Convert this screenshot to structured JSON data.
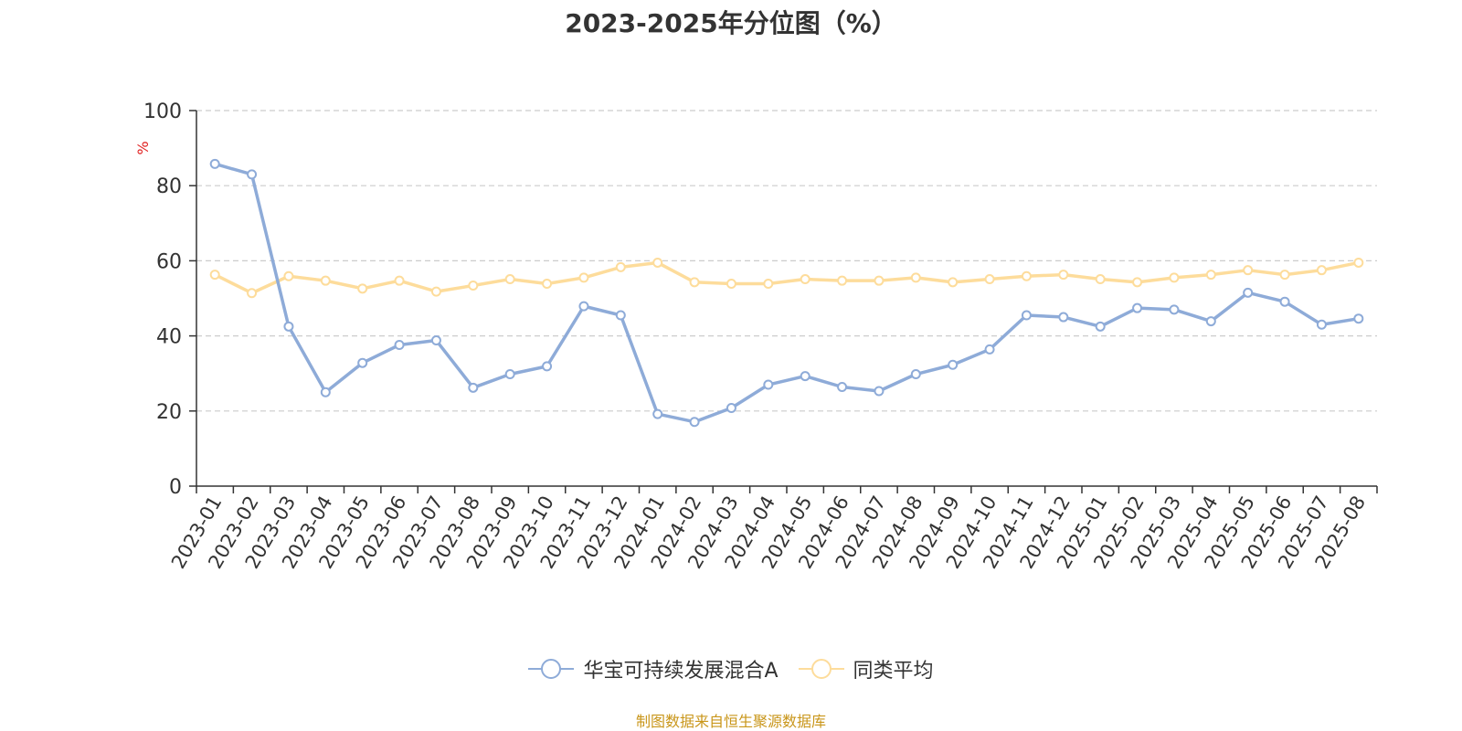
{
  "chart_data": {
    "type": "line",
    "title": "2023-2025年分位图（%）",
    "ylabel": "%",
    "ylim": [
      0,
      100
    ],
    "yticks": [
      "0",
      "20",
      "40",
      "60",
      "80",
      "100"
    ],
    "grid": true,
    "legend_position": "bottom",
    "categories": [
      "2023-01",
      "2023-02",
      "2023-03",
      "2023-04",
      "2023-05",
      "2023-06",
      "2023-07",
      "2023-08",
      "2023-09",
      "2023-10",
      "2023-11",
      "2023-12",
      "2024-01",
      "2024-02",
      "2024-03",
      "2024-04",
      "2024-05",
      "2024-06",
      "2024-07",
      "2024-08",
      "2024-09",
      "2024-10",
      "2024-11",
      "2024-12",
      "2025-01",
      "2025-02",
      "2025-03",
      "2025-04",
      "2025-05",
      "2025-06",
      "2025-07",
      "2025-08"
    ],
    "series": [
      {
        "name": "华宝可持续发展混合A",
        "color": "#8eabd8",
        "values": [
          85.8,
          83.0,
          42.5,
          25.0,
          32.8,
          37.6,
          38.8,
          26.2,
          29.8,
          31.9,
          47.9,
          45.5,
          19.2,
          17.1,
          20.8,
          27.0,
          29.3,
          26.4,
          25.3,
          29.8,
          32.3,
          36.4,
          45.5,
          45.0,
          42.5,
          47.4,
          47.0,
          43.9,
          51.5,
          49.1,
          43.0,
          44.6
        ]
      },
      {
        "name": "同类平均",
        "color": "#fddc9b",
        "values": [
          56.3,
          51.4,
          55.9,
          54.7,
          52.6,
          54.7,
          51.8,
          53.4,
          55.1,
          53.9,
          55.5,
          58.3,
          59.5,
          54.3,
          53.9,
          53.9,
          55.1,
          54.7,
          54.7,
          55.5,
          54.3,
          55.1,
          55.9,
          56.3,
          55.1,
          54.3,
          55.5,
          56.3,
          57.5,
          56.3,
          57.5,
          59.5
        ]
      }
    ]
  },
  "source_text": "制图数据来自恒生聚源数据库"
}
